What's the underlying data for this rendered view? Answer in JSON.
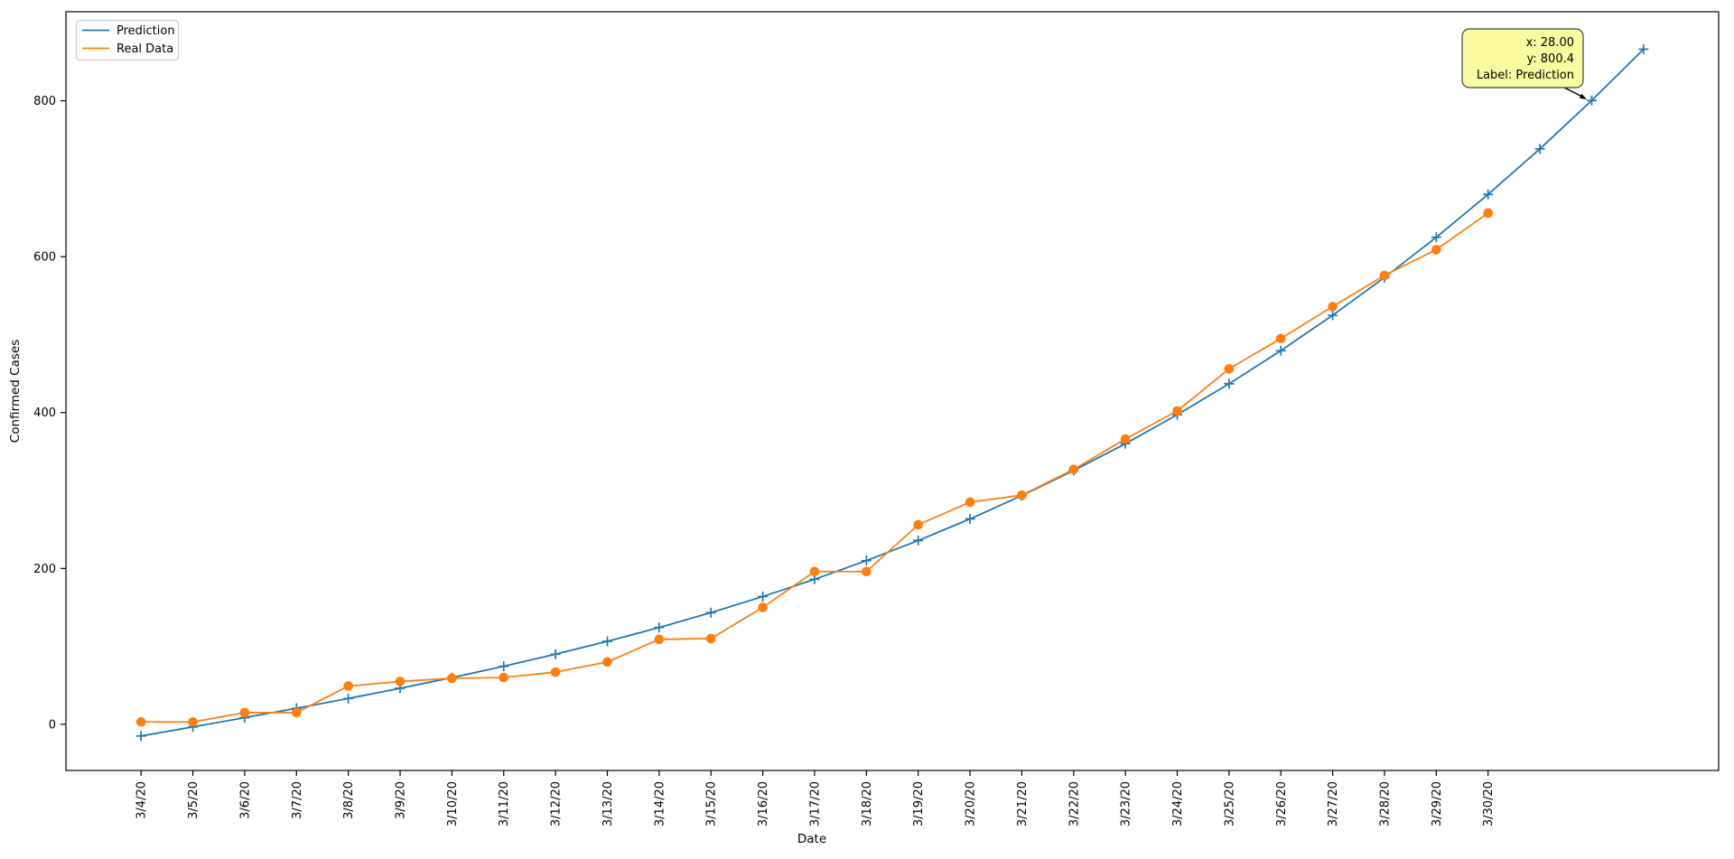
{
  "figure": {
    "background": "#ffffff",
    "axis_color": "#000000",
    "legend": {
      "border_color": "#cccccc",
      "fill": "#ffffff"
    },
    "tooltip": {
      "fill": "#fafa9e",
      "border": "#404040",
      "lines": [
        "x: 28.00",
        "y: 800.4",
        "Label: Prediction"
      ]
    }
  },
  "chart_data": {
    "type": "line",
    "title": "",
    "xlabel": "Date",
    "ylabel": "Confirmed Cases",
    "grid": false,
    "legend_position": "upper-left",
    "xlim": [
      -1.45,
      30.45
    ],
    "ylim": [
      -59.25,
      914.25
    ],
    "yticks": [
      0,
      200,
      400,
      600,
      800
    ],
    "categories": [
      "3/4/20",
      "3/5/20",
      "3/6/20",
      "3/7/20",
      "3/8/20",
      "3/9/20",
      "3/10/20",
      "3/11/20",
      "3/12/20",
      "3/13/20",
      "3/14/20",
      "3/15/20",
      "3/16/20",
      "3/17/20",
      "3/18/20",
      "3/19/20",
      "3/20/20",
      "3/21/20",
      "3/22/20",
      "3/23/20",
      "3/24/20",
      "3/25/20",
      "3/26/20",
      "3/27/20",
      "3/28/20",
      "3/29/20",
      "3/30/20"
    ],
    "series": [
      {
        "name": "Prediction",
        "color": "#1f77b4",
        "marker": "plus",
        "x": [
          0,
          1,
          2,
          3,
          4,
          5,
          6,
          7,
          8,
          9,
          10,
          11,
          12,
          13,
          14,
          15,
          16,
          17,
          18,
          19,
          20,
          21,
          22,
          23,
          24,
          25,
          26,
          27,
          28,
          29
        ],
        "values": [
          -15.0,
          -3.3,
          8.5,
          20.6,
          33.1,
          46.2,
          59.9,
          74.4,
          89.9,
          106.5,
          124.2,
          143.3,
          163.9,
          186.1,
          210.0,
          235.8,
          263.5,
          293.4,
          325.6,
          360.1,
          397.2,
          436.9,
          479.4,
          524.8,
          573.3,
          624.9,
          679.9,
          738.3,
          800.4,
          866.2
        ]
      },
      {
        "name": "Real Data",
        "color": "#ff7f0e",
        "marker": "circle",
        "x": [
          0,
          1,
          2,
          3,
          4,
          5,
          6,
          7,
          8,
          9,
          10,
          11,
          12,
          13,
          14,
          15,
          16,
          17,
          18,
          19,
          20,
          21,
          22,
          23,
          24,
          25,
          26
        ],
        "values": [
          3,
          3,
          15,
          15,
          49,
          55,
          59,
          60,
          67,
          80,
          109,
          110,
          150,
          196,
          196,
          256,
          285,
          294,
          327,
          366,
          402,
          456,
          495,
          536,
          576,
          609,
          656
        ]
      }
    ],
    "annotation": {
      "target_series": "Prediction",
      "target_x": 28,
      "target_y": 800.4,
      "lines": [
        "x: 28.00",
        "y: 800.4",
        "Label: Prediction"
      ]
    }
  }
}
